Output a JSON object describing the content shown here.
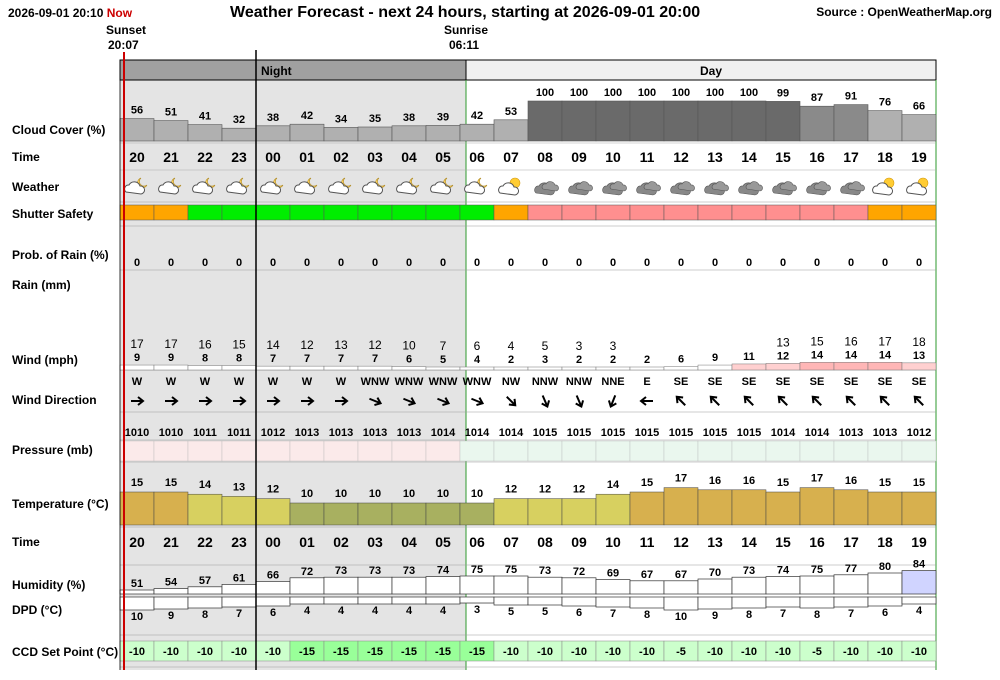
{
  "header": {
    "timestamp": "2026-09-01 20:10",
    "now_label": "Now",
    "title": "Weather Forecast - next 24 hours, starting at 2026-09-01 20:00",
    "source": "Source : OpenWeatherMap.org"
  },
  "sun": {
    "sunset_label": "Sunset",
    "sunset_time": "20:07",
    "sunrise_label": "Sunrise",
    "sunrise_time": "06:11"
  },
  "bands": {
    "night": "Night",
    "day": "Day"
  },
  "colors": {
    "night_bg": "#e4e4e4",
    "header_night": "#a0a0a0",
    "header_day": "#f0f0f0",
    "now_line": "#cc0000",
    "day_border": "#2e9a2e",
    "shutter_green": "#00ee00",
    "shutter_orange": "#ffa500",
    "shutter_red": "#ff8f8f",
    "ccd_bg": "#ccffcc",
    "ccd_dark": "#99ff99",
    "wind_calm": "#ffffff",
    "wind_breezy": "#ffd0d0",
    "wind_strong": "#ffb6b6",
    "temp_warm": "#d7b04e",
    "temp_mild": "#d7d060",
    "temp_cool": "#a8b060"
  },
  "chart_data": {
    "type": "table",
    "row_labels": {
      "cloud": "Cloud Cover (%)",
      "time": "Time",
      "weather": "Weather",
      "shutter": "Shutter Safety",
      "rain_prob": "Prob. of Rain (%)",
      "rain": "Rain (mm)",
      "wind": "Wind (mph)",
      "wind_dir": "Wind Direction",
      "pressure": "Pressure (mb)",
      "temperature": "Temperature (°C)",
      "time2": "Time",
      "humidity": "Humidity (%)",
      "dpd": "DPD (°C)",
      "ccd": "CCD Set Point (°C)"
    },
    "hours": [
      "20",
      "21",
      "22",
      "23",
      "00",
      "01",
      "02",
      "03",
      "04",
      "05",
      "06",
      "07",
      "08",
      "09",
      "10",
      "11",
      "12",
      "13",
      "14",
      "15",
      "16",
      "17",
      "18",
      "19"
    ],
    "cloud_cover": [
      56,
      51,
      41,
      32,
      38,
      42,
      34,
      35,
      38,
      39,
      42,
      53,
      100,
      100,
      100,
      100,
      100,
      100,
      100,
      99,
      87,
      91,
      76,
      66
    ],
    "weather_icons": [
      "partly-cloudy-moon-icon",
      "partly-cloudy-moon-icon",
      "partly-cloudy-moon-icon",
      "partly-cloudy-moon-icon",
      "partly-cloudy-moon-icon",
      "partly-cloudy-moon-icon",
      "partly-cloudy-moon-icon",
      "partly-cloudy-moon-icon",
      "partly-cloudy-moon-icon",
      "partly-cloudy-moon-icon",
      "partly-cloudy-moon-icon",
      "partly-cloudy-sun-icon",
      "overcast-icon",
      "overcast-icon",
      "overcast-icon",
      "overcast-icon",
      "overcast-icon",
      "overcast-icon",
      "overcast-icon",
      "overcast-icon",
      "overcast-icon",
      "overcast-icon",
      "partly-cloudy-sun-icon",
      "partly-cloudy-sun-icon"
    ],
    "shutter_safety": [
      "orange",
      "orange",
      "green",
      "green",
      "green",
      "green",
      "green",
      "green",
      "green",
      "green",
      "green",
      "orange",
      "red",
      "red",
      "red",
      "red",
      "red",
      "red",
      "red",
      "red",
      "red",
      "red",
      "orange",
      "orange"
    ],
    "rain_probability": [
      0,
      0,
      0,
      0,
      0,
      0,
      0,
      0,
      0,
      0,
      0,
      0,
      0,
      0,
      0,
      0,
      0,
      0,
      0,
      0,
      0,
      0,
      0,
      0
    ],
    "rain_mm": [
      0,
      0,
      0,
      0,
      0,
      0,
      0,
      0,
      0,
      0,
      0,
      0,
      0,
      0,
      0,
      0,
      0,
      0,
      0,
      0,
      0,
      0,
      0,
      0
    ],
    "wind_speed": [
      9,
      9,
      8,
      8,
      7,
      7,
      7,
      7,
      6,
      5,
      4,
      2,
      3,
      2,
      2,
      2,
      6,
      9,
      11,
      12,
      14,
      14,
      14,
      13
    ],
    "wind_gust": [
      17,
      17,
      16,
      15,
      14,
      12,
      13,
      12,
      10,
      7,
      6,
      4,
      5,
      3,
      3,
      "",
      "",
      "",
      "",
      13,
      15,
      16,
      17,
      18
    ],
    "wind_direction": [
      "W",
      "W",
      "W",
      "W",
      "W",
      "W",
      "W",
      "WNW",
      "WNW",
      "WNW",
      "WNW",
      "NW",
      "NNW",
      "NNW",
      "NNE",
      "E",
      "SE",
      "SE",
      "SE",
      "SE",
      "SE",
      "SE",
      "SE",
      "SE"
    ],
    "wind_bearing": [
      270,
      270,
      270,
      270,
      270,
      270,
      270,
      292,
      292,
      292,
      292,
      315,
      337,
      337,
      22,
      90,
      135,
      135,
      135,
      135,
      135,
      135,
      135,
      135
    ],
    "pressure": [
      1010,
      1010,
      1011,
      1011,
      1012,
      1013,
      1013,
      1013,
      1013,
      1014,
      1014,
      1014,
      1015,
      1015,
      1015,
      1015,
      1015,
      1015,
      1015,
      1014,
      1014,
      1013,
      1013,
      1012
    ],
    "temperature": [
      15,
      15,
      14,
      13,
      12,
      10,
      10,
      10,
      10,
      10,
      10,
      12,
      12,
      12,
      14,
      15,
      17,
      16,
      16,
      15,
      17,
      16,
      15,
      15
    ],
    "humidity": [
      51,
      54,
      57,
      61,
      66,
      72,
      73,
      73,
      73,
      74,
      75,
      75,
      73,
      72,
      69,
      67,
      67,
      70,
      73,
      74,
      75,
      77,
      80,
      84
    ],
    "dpd": [
      10,
      9,
      8,
      7,
      6,
      4,
      4,
      4,
      4,
      4,
      3,
      5,
      5,
      6,
      7,
      8,
      10,
      9,
      8,
      7,
      8,
      7,
      6,
      4
    ],
    "ccd_set_point": [
      -10,
      -10,
      -10,
      -10,
      -10,
      -15,
      -15,
      -15,
      -15,
      -15,
      -15,
      -10,
      -10,
      -10,
      -10,
      -10,
      -5,
      -10,
      -10,
      -10,
      -5,
      -10,
      -10,
      -10
    ]
  }
}
